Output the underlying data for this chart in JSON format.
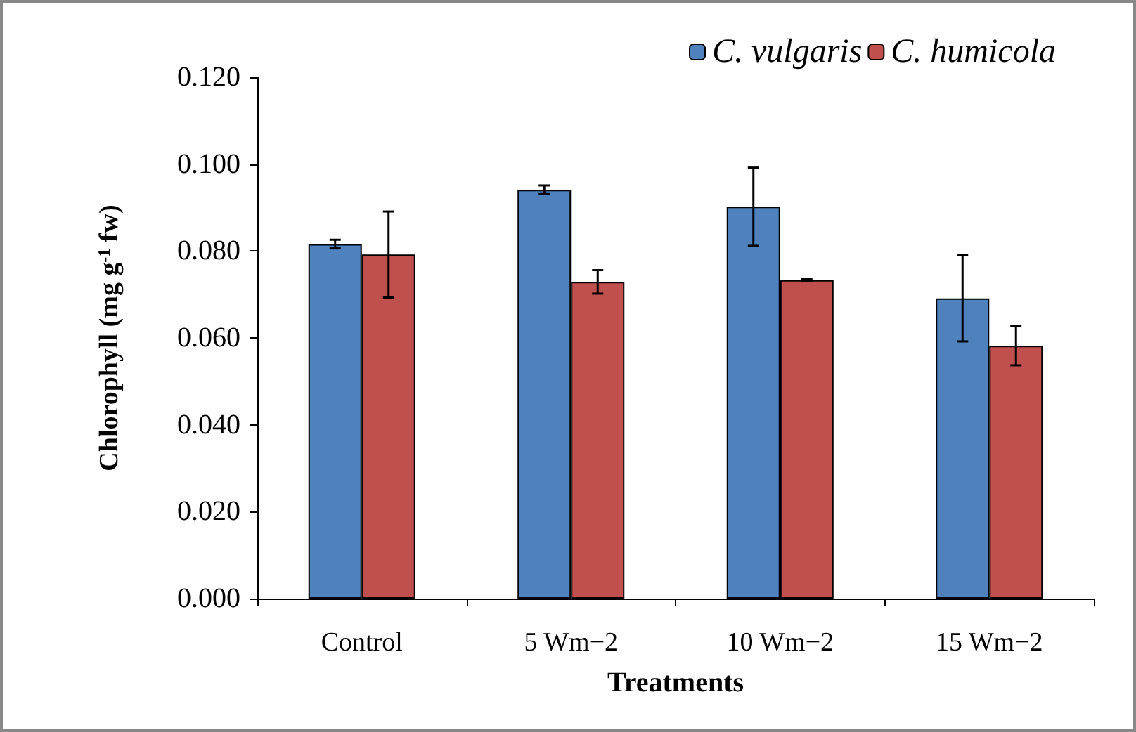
{
  "chart_data": {
    "type": "bar",
    "xlabel": "Treatments",
    "ylabel": "Chlorophyll (mg g$^{-1}$ fw)",
    "categories": [
      "Control",
      "5 Wm−2",
      "10 Wm−2",
      "15 Wm−2"
    ],
    "series": [
      {
        "name": "C. vulgaris",
        "color": "#4f81bd",
        "values": [
          0.0816,
          0.0941,
          0.0902,
          0.0691
        ],
        "errors": [
          0.001,
          0.001,
          0.009,
          0.0099
        ]
      },
      {
        "name": "C. humicola",
        "color": "#c0504d",
        "values": [
          0.0792,
          0.0729,
          0.0733,
          0.0582
        ],
        "errors": [
          0.0099,
          0.0027,
          0.0002,
          0.0045
        ]
      }
    ],
    "ylim": [
      0,
      0.12
    ],
    "yticks": [
      {
        "value": 0,
        "label": "0.000"
      },
      {
        "value": 0.02,
        "label": "0.020"
      },
      {
        "value": 0.04,
        "label": "0.040"
      },
      {
        "value": 0.06,
        "label": "0.060"
      },
      {
        "value": 0.08,
        "label": "0.080"
      },
      {
        "value": 0.1,
        "label": "0.100"
      },
      {
        "value": 0.12,
        "label": "0.120"
      }
    ],
    "grid": false,
    "legend": "top right"
  }
}
